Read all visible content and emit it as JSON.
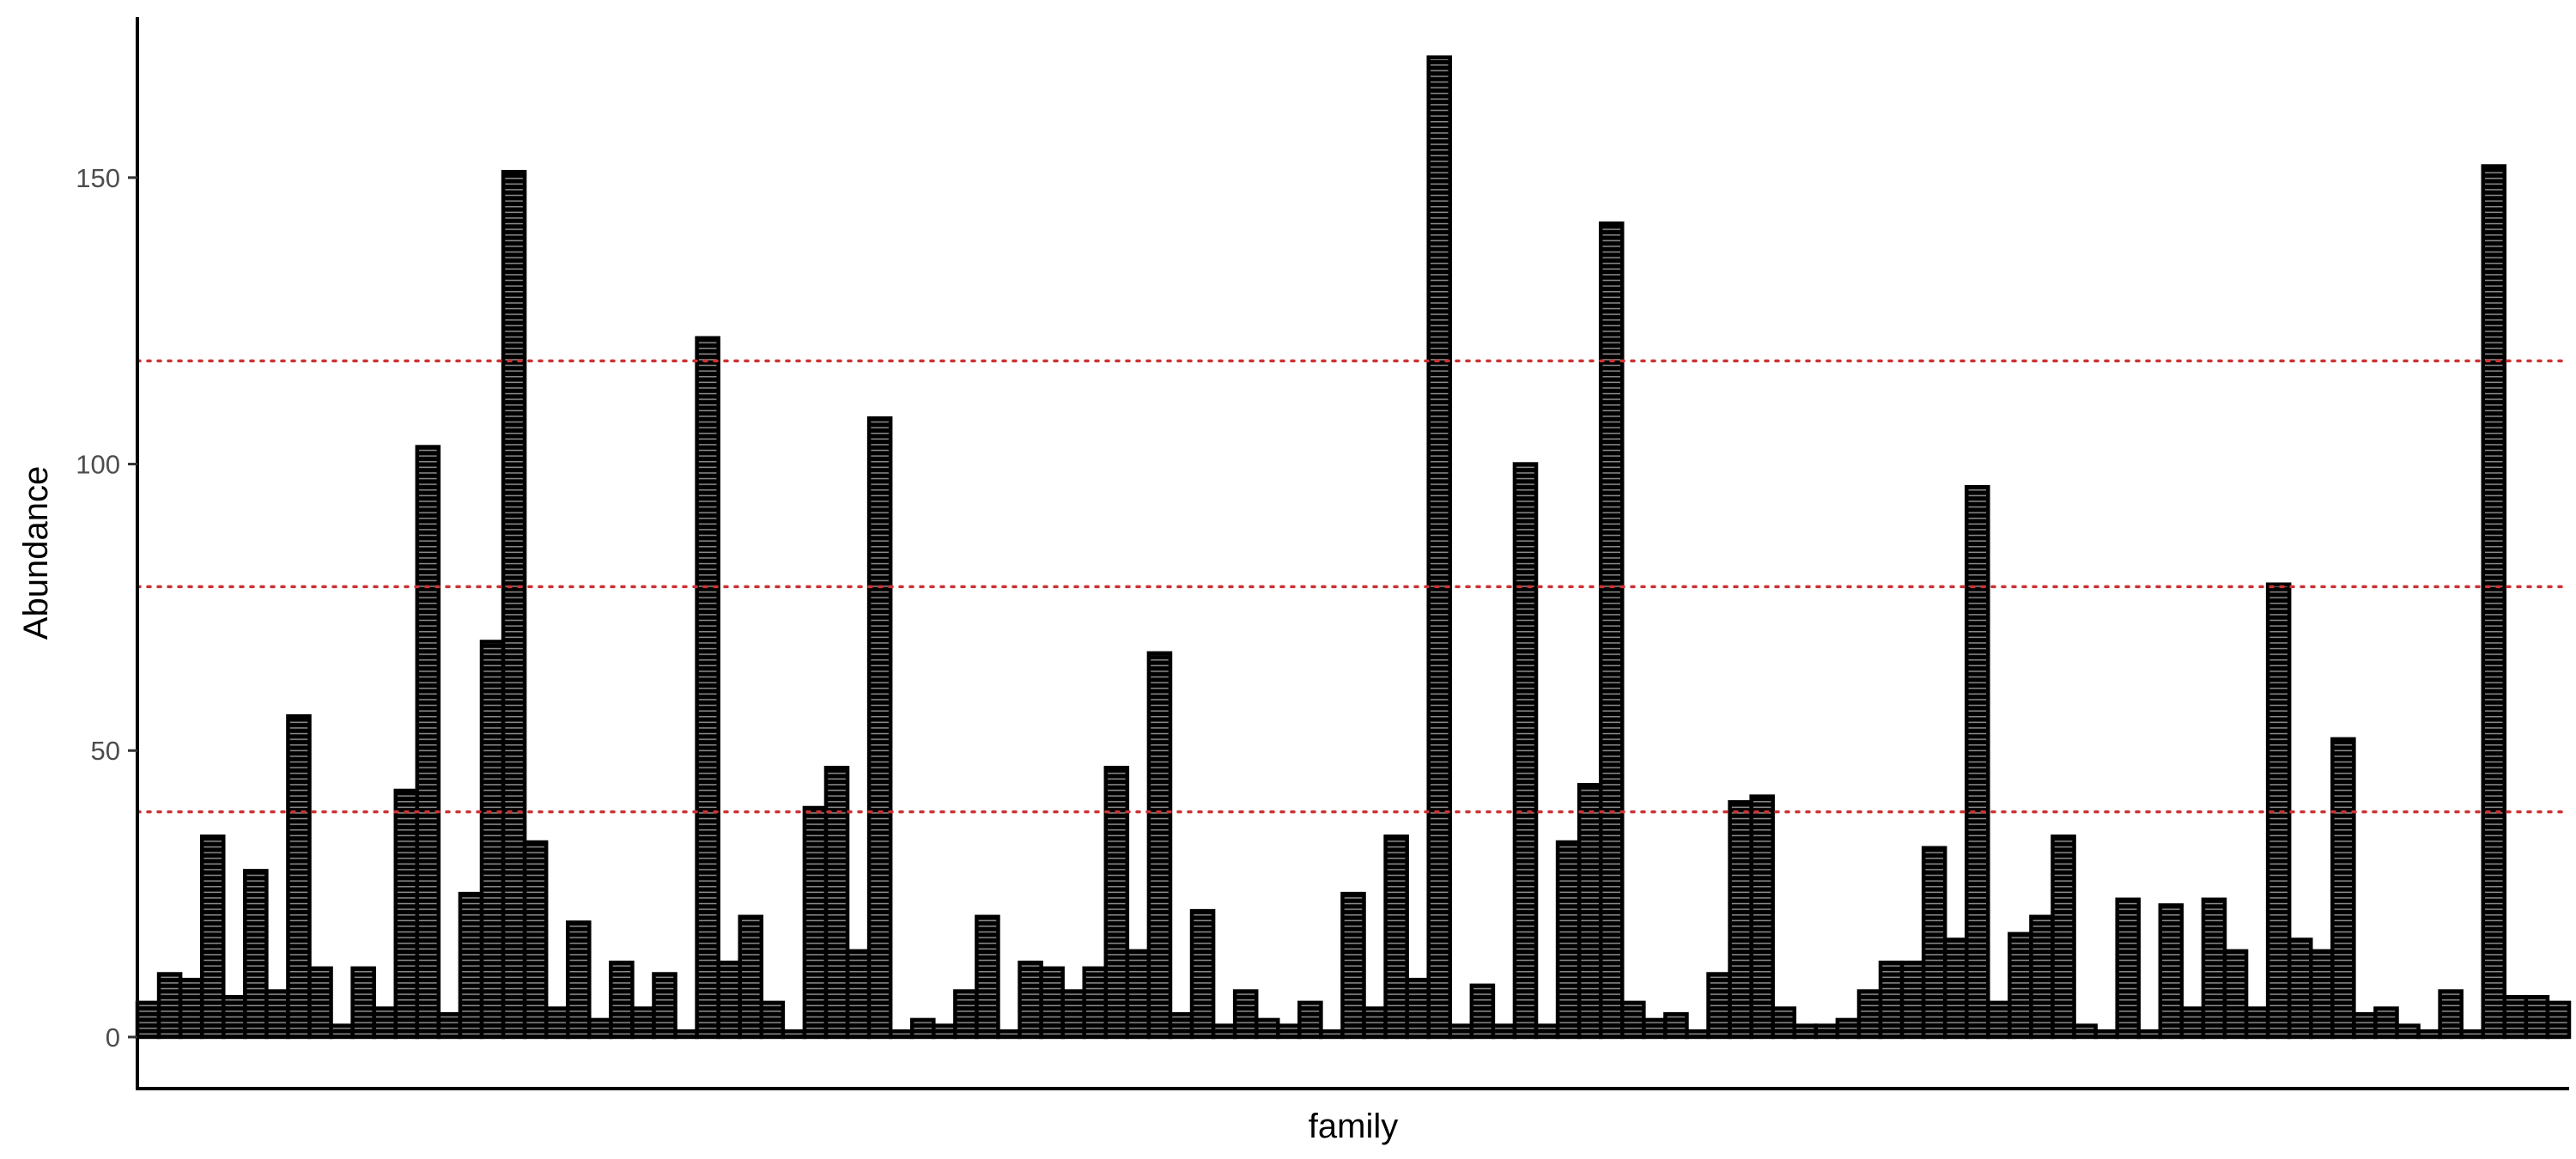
{
  "chart_data": {
    "type": "bar",
    "title": "",
    "xlabel": "family",
    "ylabel": "Abundance",
    "ylim": [
      -9,
      178
    ],
    "y_ticks": [
      0,
      50,
      100,
      150
    ],
    "y_tick_labels": [
      "0",
      "50",
      "100",
      "150"
    ],
    "x_tick_labels": "none",
    "grid": false,
    "legend": "none",
    "values": [
      6,
      11,
      10,
      35,
      7,
      29,
      8,
      56,
      12,
      2,
      12,
      5,
      43,
      103,
      4,
      25,
      69,
      151,
      34,
      5,
      20,
      3,
      13,
      5,
      11,
      1,
      122,
      13,
      21,
      6,
      1,
      40,
      47,
      15,
      108,
      1,
      3,
      2,
      8,
      21,
      1,
      13,
      12,
      8,
      12,
      47,
      15,
      67,
      4,
      22,
      2,
      8,
      3,
      2,
      6,
      1,
      25,
      5,
      35,
      10,
      171,
      2,
      9,
      2,
      100,
      2,
      34,
      44,
      142,
      6,
      3,
      4,
      1,
      11,
      41,
      42,
      5,
      2,
      2,
      3,
      8,
      13,
      13,
      33,
      17,
      96,
      6,
      18,
      21,
      35,
      2,
      1,
      24,
      1,
      23,
      5,
      24,
      15,
      5,
      79,
      17,
      15,
      52,
      4,
      5,
      2,
      1,
      8,
      1,
      152,
      7,
      7,
      6
    ],
    "reference_lines": [
      {
        "y": 39.3
      },
      {
        "y": 78.6
      },
      {
        "y": 118
      }
    ],
    "colors": {
      "bar_fill": "#000000",
      "bar_stripe": "#ffffff",
      "reference_line": "#cc3333",
      "axis": "#000000",
      "tick_label": "#4d4d4d"
    }
  }
}
